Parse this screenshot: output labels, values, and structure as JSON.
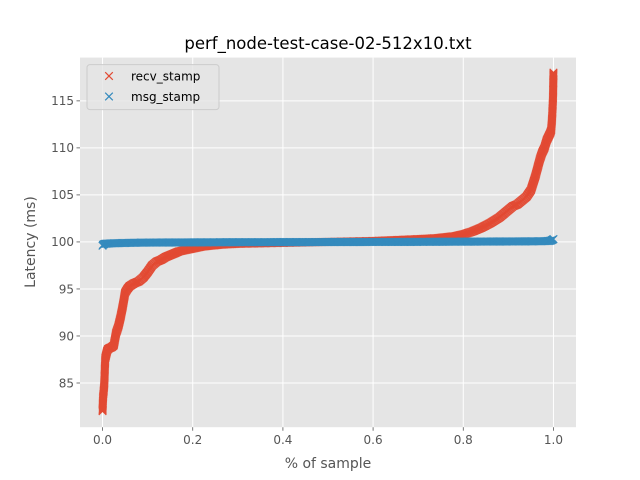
{
  "chart_data": {
    "type": "scatter",
    "title": "perf_node-test-case-02-512x10.txt",
    "xlabel": "% of sample",
    "ylabel": "Latency (ms)",
    "xlim": [
      -0.05,
      1.05
    ],
    "ylim": [
      80.3,
      119.6
    ],
    "xticks": [
      0.0,
      0.2,
      0.4,
      0.6,
      0.8,
      1.0
    ],
    "xtick_labels": [
      "0.0",
      "0.2",
      "0.4",
      "0.6",
      "0.8",
      "1.0"
    ],
    "yticks": [
      85,
      90,
      95,
      100,
      105,
      110,
      115
    ],
    "ytick_labels": [
      "85",
      "90",
      "95",
      "100",
      "105",
      "110",
      "115"
    ],
    "grid": true,
    "legend_position": "top-left",
    "marker": "x",
    "series": [
      {
        "name": "recv_stamp",
        "color": "#E24A33",
        "x": [
          0.0,
          0.001,
          0.002,
          0.003,
          0.004,
          0.005,
          0.006,
          0.008,
          0.01,
          0.012,
          0.015,
          0.02,
          0.025,
          0.03,
          0.035,
          0.04,
          0.045,
          0.05,
          0.055,
          0.06,
          0.07,
          0.08,
          0.09,
          0.1,
          0.11,
          0.12,
          0.13,
          0.14,
          0.15,
          0.16,
          0.17,
          0.18,
          0.19,
          0.2,
          0.22,
          0.24,
          0.26,
          0.28,
          0.3,
          0.35,
          0.4,
          0.45,
          0.5,
          0.55,
          0.6,
          0.65,
          0.7,
          0.74,
          0.78,
          0.8,
          0.82,
          0.84,
          0.86,
          0.88,
          0.9,
          0.91,
          0.92,
          0.93,
          0.94,
          0.95,
          0.96,
          0.97,
          0.975,
          0.98,
          0.985,
          0.99,
          0.993,
          0.995,
          0.997,
          0.999,
          1.0
        ],
        "y": [
          82.0,
          83.4,
          83.9,
          84.4,
          85.0,
          86.5,
          87.6,
          88.0,
          88.4,
          88.6,
          88.7,
          88.8,
          89.0,
          90.3,
          91.0,
          92.0,
          93.2,
          94.6,
          95.0,
          95.3,
          95.6,
          95.8,
          96.2,
          96.8,
          97.5,
          97.9,
          98.1,
          98.4,
          98.6,
          98.8,
          99.0,
          99.1,
          99.2,
          99.3,
          99.5,
          99.6,
          99.7,
          99.75,
          99.8,
          99.85,
          99.9,
          99.95,
          100.0,
          100.05,
          100.1,
          100.2,
          100.3,
          100.4,
          100.6,
          100.8,
          101.1,
          101.5,
          102.0,
          102.6,
          103.4,
          103.8,
          104.0,
          104.4,
          104.8,
          105.5,
          107.0,
          108.8,
          109.5,
          110.0,
          110.8,
          111.3,
          111.6,
          111.9,
          113.2,
          115.3,
          118.0
        ]
      },
      {
        "name": "msg_stamp",
        "color": "#348ABD",
        "x": [
          0.0,
          0.001,
          0.003,
          0.005,
          0.01,
          0.02,
          0.04,
          0.06,
          0.08,
          0.1,
          0.15,
          0.2,
          0.25,
          0.3,
          0.35,
          0.4,
          0.45,
          0.5,
          0.55,
          0.6,
          0.65,
          0.7,
          0.75,
          0.8,
          0.85,
          0.9,
          0.95,
          0.98,
          0.99,
          0.995,
          1.0
        ],
        "y": [
          99.6,
          99.7,
          99.75,
          99.8,
          99.82,
          99.85,
          99.88,
          99.9,
          99.92,
          99.93,
          99.94,
          99.95,
          99.96,
          99.97,
          99.97,
          99.98,
          99.98,
          99.99,
          99.99,
          100.0,
          100.0,
          100.01,
          100.02,
          100.03,
          100.04,
          100.05,
          100.06,
          100.08,
          100.1,
          100.15,
          100.3
        ]
      }
    ]
  }
}
